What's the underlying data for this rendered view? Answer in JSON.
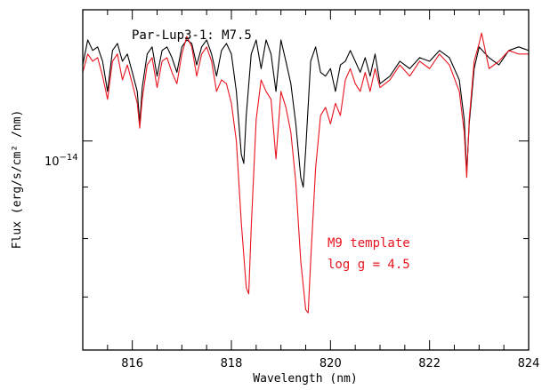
{
  "chart_data": {
    "type": "line",
    "xlabel": "Wavelength (nm)",
    "ylabel": "Flux (erg/s/cm² /nm)",
    "xlim": [
      815,
      824
    ],
    "ylim": [
      6.2e-15,
      1.35e-14
    ],
    "y_scale": "log",
    "x_ticks": [
      816,
      818,
      820,
      822,
      824
    ],
    "x_minor_step": 0.5,
    "y_tick_label": {
      "base": "10",
      "exponent": "−14",
      "value": 1e-14
    },
    "grid": false,
    "annotations": [
      {
        "text": "Par-Lup3-1: M7.5",
        "color": "#000000"
      },
      {
        "text": "M9 template",
        "color": "#e8141e"
      },
      {
        "text": "log g = 4.5",
        "color": "#e8141e"
      }
    ],
    "series": [
      {
        "color": "#000000",
        "x": [
          815.0,
          815.1,
          815.2,
          815.3,
          815.4,
          815.5,
          815.6,
          815.7,
          815.8,
          815.9,
          816.0,
          816.1,
          816.15,
          816.2,
          816.3,
          816.4,
          816.5,
          816.6,
          816.7,
          816.8,
          816.9,
          817.0,
          817.1,
          817.2,
          817.3,
          817.4,
          817.5,
          817.6,
          817.7,
          817.8,
          817.9,
          818.0,
          818.1,
          818.2,
          818.25,
          818.3,
          818.4,
          818.5,
          818.6,
          818.7,
          818.8,
          818.9,
          819.0,
          819.1,
          819.2,
          819.3,
          819.4,
          819.45,
          819.5,
          819.6,
          819.7,
          819.8,
          819.9,
          820.0,
          820.1,
          820.2,
          820.3,
          820.4,
          820.5,
          820.6,
          820.7,
          820.8,
          820.9,
          821.0,
          821.2,
          821.4,
          821.6,
          821.8,
          822.0,
          822.2,
          822.4,
          822.6,
          822.7,
          822.75,
          822.8,
          822.9,
          823.0,
          823.2,
          823.4,
          823.6,
          823.8,
          824.0
        ],
        "values": [
          1.19e-14,
          1.26e-14,
          1.23e-14,
          1.24e-14,
          1.2e-14,
          1.12e-14,
          1.23e-14,
          1.25e-14,
          1.2e-14,
          1.22e-14,
          1.17e-14,
          1.12e-14,
          1.04e-14,
          1.13e-14,
          1.22e-14,
          1.24e-14,
          1.16e-14,
          1.23e-14,
          1.24e-14,
          1.21e-14,
          1.17e-14,
          1.24e-14,
          1.26e-14,
          1.25e-14,
          1.19e-14,
          1.24e-14,
          1.26e-14,
          1.22e-14,
          1.16e-14,
          1.23e-14,
          1.25e-14,
          1.22e-14,
          1.12e-14,
          9.7e-15,
          9.5e-15,
          1.06e-14,
          1.22e-14,
          1.26e-14,
          1.18e-14,
          1.26e-14,
          1.22e-14,
          1.12e-14,
          1.26e-14,
          1.2e-14,
          1.14e-14,
          1.04e-14,
          9.2e-15,
          9e-15,
          9.8e-15,
          1.2e-14,
          1.24e-14,
          1.17e-14,
          1.16e-14,
          1.18e-14,
          1.12e-14,
          1.19e-14,
          1.2e-14,
          1.23e-14,
          1.2e-14,
          1.17e-14,
          1.21e-14,
          1.16e-14,
          1.22e-14,
          1.14e-14,
          1.16e-14,
          1.2e-14,
          1.18e-14,
          1.21e-14,
          1.2e-14,
          1.23e-14,
          1.21e-14,
          1.15e-14,
          1.05e-14,
          9.3e-15,
          1.04e-14,
          1.18e-14,
          1.24e-14,
          1.21e-14,
          1.19e-14,
          1.23e-14,
          1.24e-14,
          1.23e-14
        ]
      },
      {
        "color": "#e8141e",
        "x": [
          815.0,
          815.1,
          815.2,
          815.3,
          815.4,
          815.5,
          815.6,
          815.7,
          815.8,
          815.9,
          816.0,
          816.1,
          816.15,
          816.2,
          816.3,
          816.4,
          816.5,
          816.6,
          816.7,
          816.8,
          816.9,
          817.0,
          817.1,
          817.2,
          817.3,
          817.4,
          817.5,
          817.6,
          817.7,
          817.8,
          817.9,
          818.0,
          818.1,
          818.2,
          818.3,
          818.35,
          818.4,
          818.5,
          818.6,
          818.7,
          818.8,
          818.9,
          819.0,
          819.1,
          819.2,
          819.3,
          819.4,
          819.5,
          819.55,
          819.6,
          819.7,
          819.8,
          819.9,
          820.0,
          820.1,
          820.2,
          820.3,
          820.4,
          820.5,
          820.6,
          820.7,
          820.8,
          820.9,
          821.0,
          821.2,
          821.4,
          821.6,
          821.8,
          822.0,
          822.2,
          822.4,
          822.6,
          822.7,
          822.75,
          822.8,
          822.9,
          823.0,
          823.05,
          823.2,
          823.4,
          823.6,
          823.8,
          824.0
        ],
        "values": [
          1.17e-14,
          1.22e-14,
          1.2e-14,
          1.21e-14,
          1.16e-14,
          1.1e-14,
          1.2e-14,
          1.22e-14,
          1.15e-14,
          1.19e-14,
          1.14e-14,
          1.09e-14,
          1.03e-14,
          1.1e-14,
          1.19e-14,
          1.21e-14,
          1.13e-14,
          1.2e-14,
          1.21e-14,
          1.17e-14,
          1.14e-14,
          1.22e-14,
          1.27e-14,
          1.24e-14,
          1.16e-14,
          1.22e-14,
          1.24e-14,
          1.2e-14,
          1.12e-14,
          1.15e-14,
          1.14e-14,
          1.09e-14,
          1e-14,
          8.3e-15,
          7.15e-15,
          7.05e-15,
          8.2e-15,
          1.05e-14,
          1.15e-14,
          1.12e-14,
          1.1e-14,
          9.6e-15,
          1.12e-14,
          1.08e-14,
          1.02e-14,
          9.1e-15,
          7.6e-15,
          6.8e-15,
          6.75e-15,
          7.6e-15,
          9.4e-15,
          1.06e-14,
          1.08e-14,
          1.04e-14,
          1.09e-14,
          1.06e-14,
          1.15e-14,
          1.18e-14,
          1.14e-14,
          1.12e-14,
          1.17e-14,
          1.12e-14,
          1.18e-14,
          1.13e-14,
          1.15e-14,
          1.19e-14,
          1.16e-14,
          1.2e-14,
          1.18e-14,
          1.22e-14,
          1.19e-14,
          1.12e-14,
          1.02e-14,
          9.2e-15,
          1.05e-14,
          1.2e-14,
          1.25e-14,
          1.28e-14,
          1.18e-14,
          1.2e-14,
          1.23e-14,
          1.22e-14,
          1.22e-14
        ]
      }
    ]
  }
}
